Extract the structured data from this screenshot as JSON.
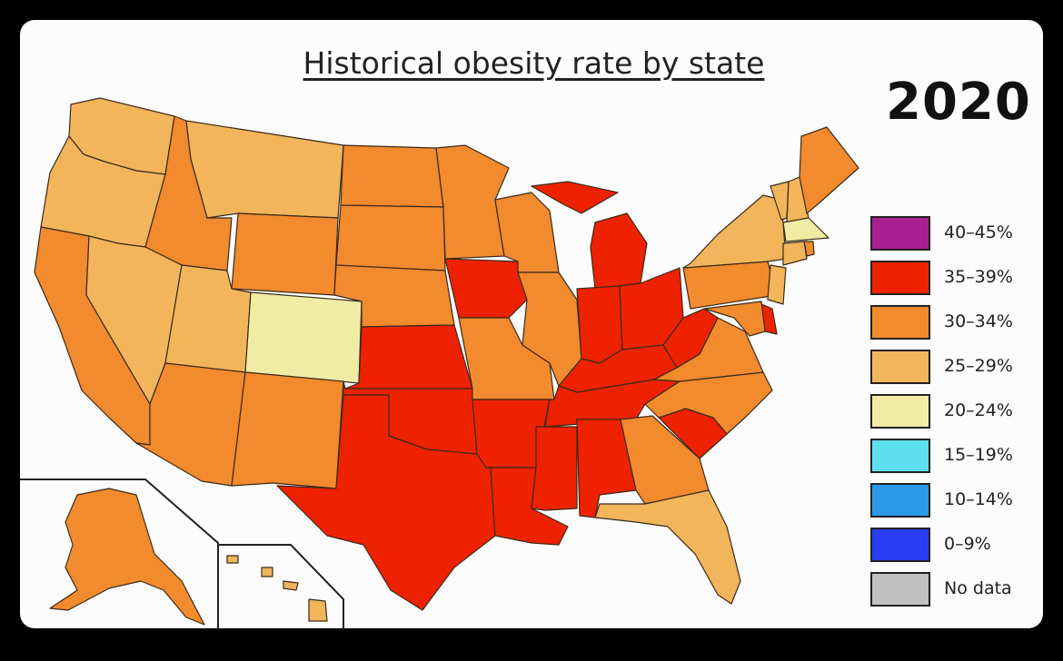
{
  "title": "Historical obesity rate by state",
  "year": "2020",
  "legend": [
    {
      "label": "40–45%",
      "color": "#a8208f"
    },
    {
      "label": "35–39%",
      "color": "#ee2200"
    },
    {
      "label": "30–34%",
      "color": "#f28a2e"
    },
    {
      "label": "25–29%",
      "color": "#f2b55c"
    },
    {
      "label": "20–24%",
      "color": "#f0eca4"
    },
    {
      "label": "15–19%",
      "color": "#5ee0f0"
    },
    {
      "label": "10–14%",
      "color": "#2a9ae8"
    },
    {
      "label": "0–9%",
      "color": "#2a3cf0"
    },
    {
      "label": "No data",
      "color": "#c0c0c0"
    }
  ],
  "states": [
    {
      "abbr": "WA",
      "bin": "25–29%"
    },
    {
      "abbr": "OR",
      "bin": "25–29%"
    },
    {
      "abbr": "CA",
      "bin": "30–34%"
    },
    {
      "abbr": "ID",
      "bin": "30–34%"
    },
    {
      "abbr": "NV",
      "bin": "25–29%"
    },
    {
      "abbr": "MT",
      "bin": "25–29%"
    },
    {
      "abbr": "WY",
      "bin": "30–34%"
    },
    {
      "abbr": "UT",
      "bin": "25–29%"
    },
    {
      "abbr": "CO",
      "bin": "20–24%"
    },
    {
      "abbr": "AZ",
      "bin": "30–34%"
    },
    {
      "abbr": "NM",
      "bin": "30–34%"
    },
    {
      "abbr": "ND",
      "bin": "30–34%"
    },
    {
      "abbr": "SD",
      "bin": "30–34%"
    },
    {
      "abbr": "NE",
      "bin": "30–34%"
    },
    {
      "abbr": "KS",
      "bin": "35–39%"
    },
    {
      "abbr": "OK",
      "bin": "35–39%"
    },
    {
      "abbr": "TX",
      "bin": "35–39%"
    },
    {
      "abbr": "MN",
      "bin": "30–34%"
    },
    {
      "abbr": "IA",
      "bin": "35–39%"
    },
    {
      "abbr": "MO",
      "bin": "30–34%"
    },
    {
      "abbr": "AR",
      "bin": "35–39%"
    },
    {
      "abbr": "LA",
      "bin": "35–39%"
    },
    {
      "abbr": "WI",
      "bin": "30–34%"
    },
    {
      "abbr": "IL",
      "bin": "30–34%"
    },
    {
      "abbr": "MI",
      "bin": "35–39%"
    },
    {
      "abbr": "IN",
      "bin": "35–39%"
    },
    {
      "abbr": "OH",
      "bin": "35–39%"
    },
    {
      "abbr": "KY",
      "bin": "35–39%"
    },
    {
      "abbr": "TN",
      "bin": "35–39%"
    },
    {
      "abbr": "MS",
      "bin": "35–39%"
    },
    {
      "abbr": "AL",
      "bin": "35–39%"
    },
    {
      "abbr": "GA",
      "bin": "30–34%"
    },
    {
      "abbr": "FL",
      "bin": "25–29%"
    },
    {
      "abbr": "SC",
      "bin": "35–39%"
    },
    {
      "abbr": "NC",
      "bin": "30–34%"
    },
    {
      "abbr": "VA",
      "bin": "30–34%"
    },
    {
      "abbr": "WV",
      "bin": "35–39%"
    },
    {
      "abbr": "PA",
      "bin": "30–34%"
    },
    {
      "abbr": "NY",
      "bin": "25–29%"
    },
    {
      "abbr": "VT",
      "bin": "25–29%"
    },
    {
      "abbr": "NH",
      "bin": "25–29%"
    },
    {
      "abbr": "ME",
      "bin": "30–34%"
    },
    {
      "abbr": "MA",
      "bin": "20–24%"
    },
    {
      "abbr": "CT",
      "bin": "25–29%"
    },
    {
      "abbr": "RI",
      "bin": "30–34%"
    },
    {
      "abbr": "NJ",
      "bin": "25–29%"
    },
    {
      "abbr": "DE",
      "bin": "35–39%"
    },
    {
      "abbr": "MD",
      "bin": "30–34%"
    },
    {
      "abbr": "AK",
      "bin": "30–34%"
    },
    {
      "abbr": "HI",
      "bin": "25–29%"
    }
  ]
}
